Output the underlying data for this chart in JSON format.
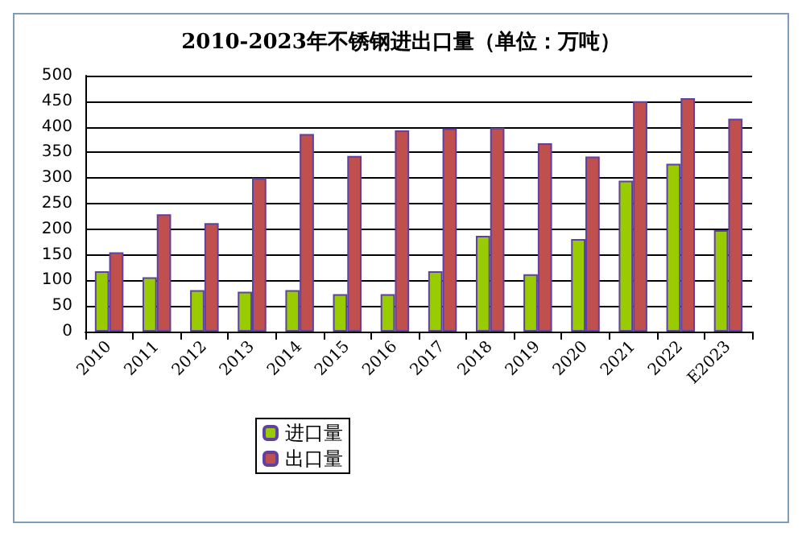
{
  "chart_data": {
    "type": "bar",
    "title": "2010-2023年不锈钢进出口量（单位：万吨）",
    "categories": [
      "2010",
      "2011",
      "2012",
      "2013",
      "2014",
      "2015",
      "2016",
      "2017",
      "2018",
      "2019",
      "2020",
      "2021",
      "2022",
      "E2023"
    ],
    "series": [
      {
        "name": "进口量",
        "color": "#99cc00",
        "values": [
          118,
          106,
          81,
          78,
          81,
          73,
          73,
          118,
          187,
          112,
          181,
          295,
          328,
          198
        ]
      },
      {
        "name": "出口量",
        "color": "#c0504d",
        "values": [
          155,
          229,
          212,
          300,
          386,
          343,
          393,
          397,
          398,
          368,
          342,
          450,
          456,
          416
        ]
      }
    ],
    "ylim": [
      0,
      500
    ],
    "yticks": [
      0,
      50,
      100,
      150,
      200,
      250,
      300,
      350,
      400,
      450,
      500
    ],
    "grid": "y",
    "legend": "bottom"
  }
}
